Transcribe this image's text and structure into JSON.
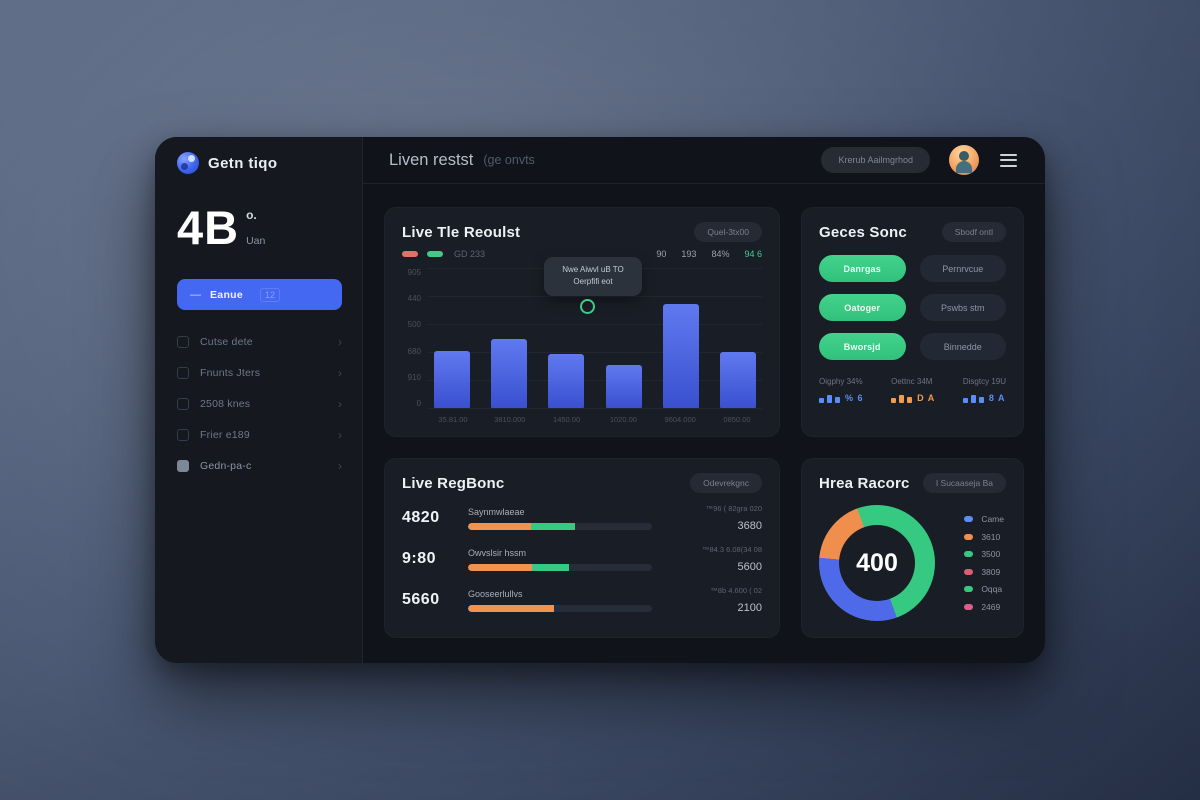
{
  "sidebar": {
    "brand": "Getn tiqo",
    "stat": {
      "value": "4B",
      "sup": "o.",
      "sub": "Uan"
    },
    "active_item": {
      "dash": "—",
      "label": "Eanue",
      "badge": "12"
    },
    "items": [
      {
        "label": "Cutse dete"
      },
      {
        "label": "Fnunts Jters"
      },
      {
        "label": "2508 knes"
      },
      {
        "label": "Frier e189"
      },
      {
        "label": "Gedn-pa-c"
      }
    ],
    "chevron": "›"
  },
  "header": {
    "title": "Liven restst",
    "suffix": "(ge onvts",
    "action_label": "Krerub Aailmgrhod"
  },
  "cards": {
    "bar_card": {
      "title": "Live Tle Reoulst",
      "action_label": "Quel-3tx00",
      "legend_pills": [
        "#e0726b",
        "#3ecb85"
      ],
      "legend_text": "GD 233",
      "legend_stats": [
        "90",
        "193",
        "84%",
        "94 6"
      ],
      "tooltip": {
        "line1": "Nwe Aiwvl uB TO",
        "line2": "Oerpfifi eot"
      }
    },
    "buttons_card": {
      "title": "Geces Sonc",
      "action_label": "Sbodf ontl",
      "green_buttons": [
        "Danrgas",
        "Oatoger",
        "Bworsjd"
      ],
      "dark_buttons": [
        "Pernrvcue",
        "Pswbs stm",
        "Binnedde"
      ],
      "stats": [
        {
          "label": "Oigphy 34%",
          "glyphs": "% 6",
          "color": "#5b8df6"
        },
        {
          "label": "Oettnc 34M",
          "glyphs": "D A",
          "color": "#f09b4e"
        },
        {
          "label": "Disgtcy 19U",
          "glyphs": "8 A",
          "color": "#5b8df6"
        }
      ]
    },
    "progress_card": {
      "title": "Live RegBonc",
      "action_label": "Odevrekgnc",
      "rows": [
        {
          "value": "4820",
          "label": "Saynmwlaeae",
          "note": "™96 ( 82gra 020",
          "right_value": "3680",
          "orange_pct": 34,
          "green_pct": 24
        },
        {
          "value": "9:80",
          "label": "Owvslsir hssm",
          "note": "™84.3 6.08(34 08",
          "right_value": "5600",
          "orange_pct": 35,
          "green_pct": 20
        },
        {
          "value": "5660",
          "label": "Gooseerlullvs",
          "note": "™8b 4.600 ( 02",
          "right_value": "2100",
          "orange_pct": 47,
          "green_pct": 0
        }
      ]
    },
    "donut_card": {
      "title": "Hrea Racorc",
      "action_label": "I Sucaaseja Ba",
      "center_value": "400"
    }
  },
  "chart_data": [
    {
      "type": "bar",
      "title": "Live Tle Reoulst",
      "categories": [
        "35.81.00",
        "3810.000",
        "1450.00",
        "1020.00",
        "9604.000",
        "0850.00"
      ],
      "values": [
        205,
        247,
        194,
        152,
        370,
        200
      ],
      "ylim": [
        0,
        500
      ],
      "ytick_labels_top_to_bottom": [
        "905",
        "440",
        "500",
        "680",
        "910",
        "0"
      ],
      "grid": true,
      "bar_color": "#4f63e0",
      "highlight_marker": {
        "color": "#3ecb85",
        "near_category_index": 3
      }
    },
    {
      "type": "donut",
      "title": "Hrea Racorc",
      "center_value": "400",
      "start_deg": -20,
      "segments": [
        {
          "label": "green",
          "value": 50,
          "color": "#36c981"
        },
        {
          "label": "blue",
          "value": 32,
          "color": "#4f6ae8"
        },
        {
          "label": "orange",
          "value": 18,
          "color": "#ef8e4d"
        }
      ],
      "legend": [
        {
          "color": "#5b8df6",
          "label": "Came"
        },
        {
          "color": "#ef8e4d",
          "label": "3610"
        },
        {
          "color": "#36c981",
          "label": "3500"
        },
        {
          "color": "#d95f72",
          "label": "3809"
        },
        {
          "color": "#36c981",
          "label": "Oqqa"
        },
        {
          "color": "#d9608c",
          "label": "2469"
        }
      ],
      "legend_position": "right"
    }
  ]
}
